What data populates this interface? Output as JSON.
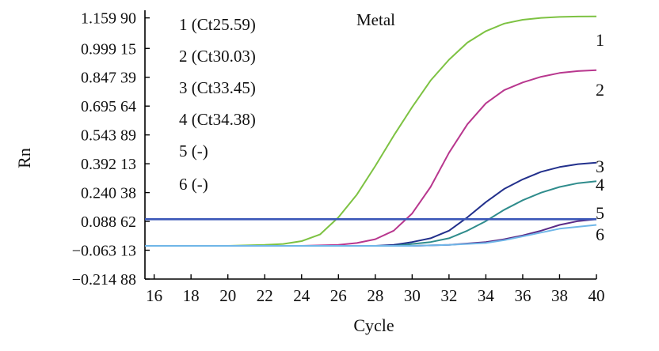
{
  "chart_data": {
    "type": "line",
    "title": "Metal",
    "xlabel": "Cycle",
    "ylabel": "Rn",
    "xlim": [
      15.5,
      40
    ],
    "ylim": [
      -0.21488,
      1.2
    ],
    "x_ticks": [
      "16",
      "18",
      "20",
      "22",
      "24",
      "26",
      "28",
      "30",
      "32",
      "34",
      "36",
      "38",
      "40"
    ],
    "y_ticks": [
      "1.159 90",
      "0.999 15",
      "0.847 39",
      "0.695 64",
      "0.543 89",
      "0.392 13",
      "0.240 38",
      "0.088 62",
      "−0.063 13",
      "−0.214 88"
    ],
    "y_tick_values": [
      1.1599,
      0.99915,
      0.84739,
      0.69564,
      0.54389,
      0.39213,
      0.24038,
      0.08862,
      -0.06313,
      -0.21488
    ],
    "grid": false,
    "legend": [
      {
        "text": "1 (Ct25.59)"
      },
      {
        "text": "2 (Ct30.03)"
      },
      {
        "text": "3 (Ct33.45)"
      },
      {
        "text": "4 (Ct34.38)"
      },
      {
        "text": "5 (-)"
      },
      {
        "text": "6 (-)"
      }
    ],
    "threshold": 0.1,
    "series": [
      {
        "label": "1",
        "color": "#7dc242",
        "x": [
          15.5,
          20,
          22,
          23,
          24,
          25,
          26,
          27,
          28,
          29,
          30,
          31,
          32,
          33,
          34,
          35,
          36,
          37,
          38,
          39,
          40
        ],
        "y": [
          -0.04,
          -0.04,
          -0.035,
          -0.03,
          -0.015,
          0.02,
          0.11,
          0.23,
          0.38,
          0.54,
          0.69,
          0.83,
          0.94,
          1.03,
          1.09,
          1.13,
          1.15,
          1.16,
          1.165,
          1.167,
          1.168
        ]
      },
      {
        "label": "2",
        "color": "#b8378e",
        "x": [
          15.5,
          24,
          26,
          27,
          28,
          29,
          30,
          31,
          32,
          33,
          34,
          35,
          36,
          37,
          38,
          39,
          40
        ],
        "y": [
          -0.04,
          -0.04,
          -0.035,
          -0.025,
          -0.005,
          0.04,
          0.13,
          0.27,
          0.45,
          0.6,
          0.71,
          0.78,
          0.82,
          0.85,
          0.87,
          0.88,
          0.885
        ]
      },
      {
        "label": "3",
        "color": "#22308c",
        "x": [
          15.5,
          28,
          29,
          30,
          31,
          32,
          33,
          34,
          35,
          36,
          37,
          38,
          39,
          40
        ],
        "y": [
          -0.04,
          -0.04,
          -0.035,
          -0.02,
          0.0,
          0.04,
          0.11,
          0.19,
          0.26,
          0.31,
          0.35,
          0.375,
          0.39,
          0.398
        ]
      },
      {
        "label": "4",
        "color": "#2f8c8c",
        "x": [
          15.5,
          29,
          30,
          31,
          32,
          33,
          34,
          35,
          36,
          37,
          38,
          39,
          40
        ],
        "y": [
          -0.04,
          -0.04,
          -0.03,
          -0.02,
          0.0,
          0.04,
          0.09,
          0.15,
          0.2,
          0.24,
          0.27,
          0.29,
          0.3
        ]
      },
      {
        "label": "5",
        "color": "#5a2a86",
        "x": [
          15.5,
          30,
          32,
          34,
          35,
          36,
          37,
          38,
          39,
          40
        ],
        "y": [
          -0.04,
          -0.04,
          -0.035,
          -0.02,
          -0.005,
          0.015,
          0.04,
          0.07,
          0.09,
          0.1
        ]
      },
      {
        "label": "6",
        "color": "#6fb6e8",
        "x": [
          15.5,
          30,
          32,
          34,
          35,
          36,
          37,
          38,
          39,
          40
        ],
        "y": [
          -0.04,
          -0.04,
          -0.035,
          -0.025,
          -0.01,
          0.01,
          0.03,
          0.05,
          0.06,
          0.07
        ]
      }
    ],
    "colors": {
      "threshold": "#3b57b8",
      "axis": "#000000"
    }
  }
}
